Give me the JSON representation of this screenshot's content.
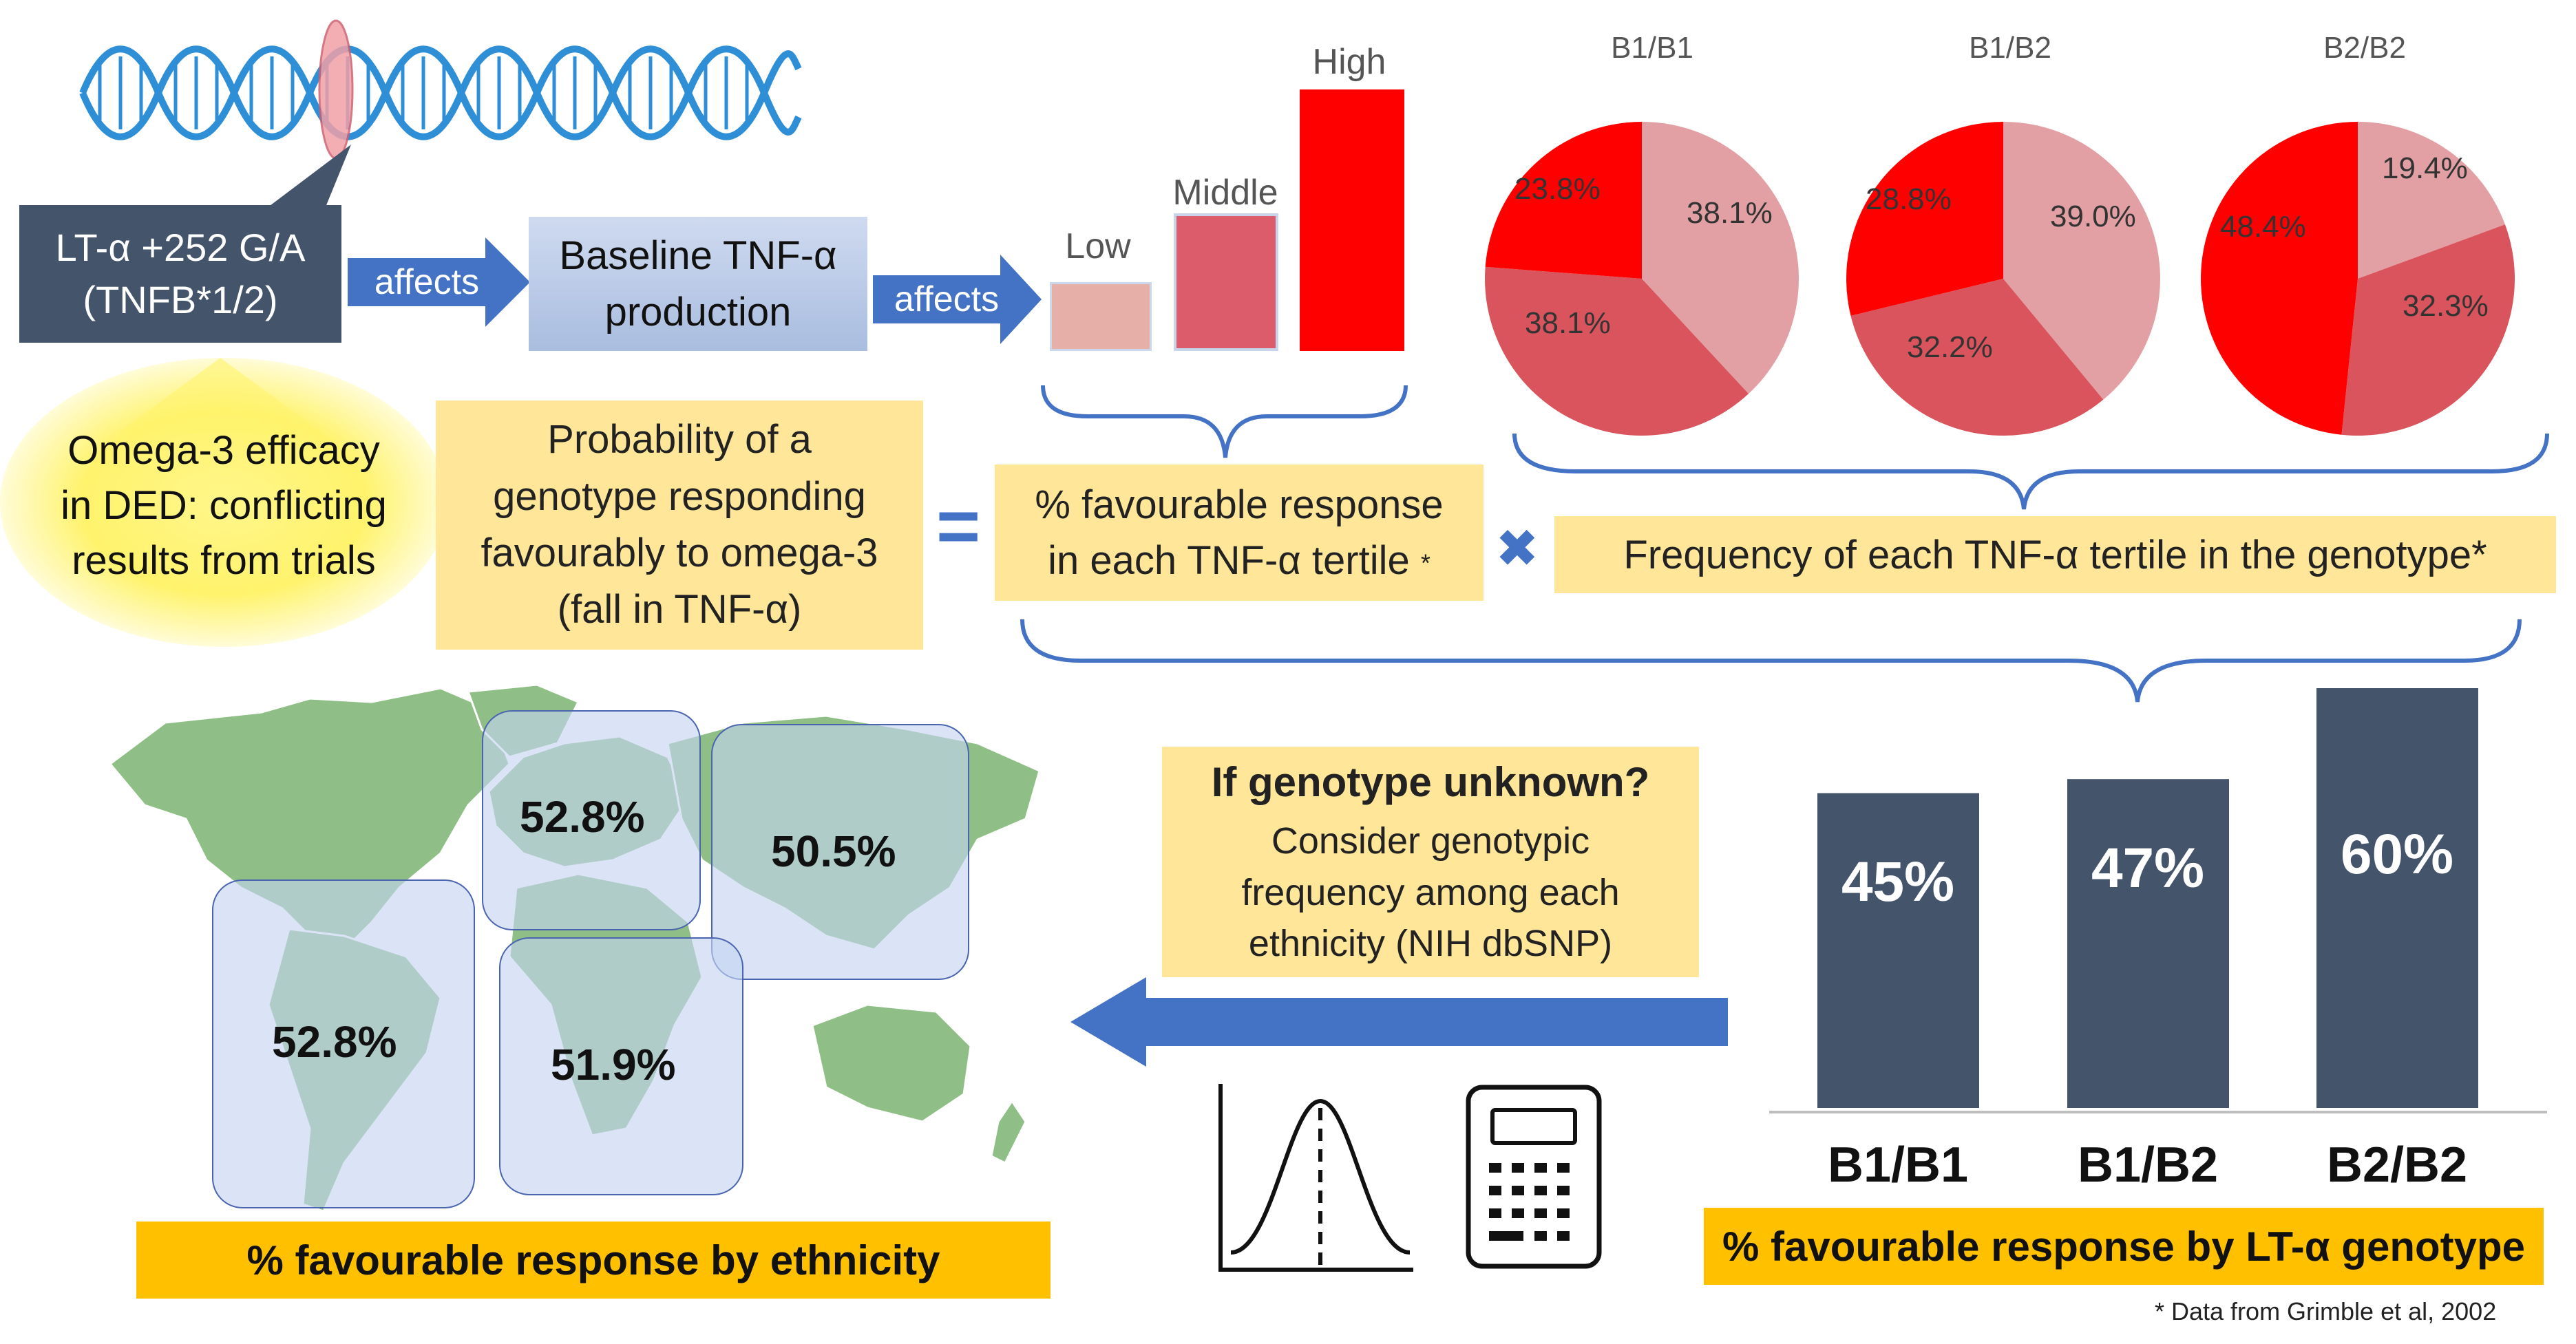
{
  "genotype_box": {
    "line1": "LT-α +252 G/A",
    "line2": "(TNFB*1/2)"
  },
  "arrows": {
    "affects1": "affects",
    "affects2": "affects"
  },
  "baseline_box": {
    "line1": "Baseline TNF-α",
    "line2": "production"
  },
  "tertile_levels": [
    {
      "label": "Low",
      "color": "#e6b0a8"
    },
    {
      "label": "Middle",
      "color": "#dc5c6c"
    },
    {
      "label": "High",
      "color": "#ff0000"
    }
  ],
  "pies": [
    {
      "title": "B1/B1",
      "slices": [
        {
          "label": "38.1%",
          "value": 38.1,
          "color": "#e2a0a4"
        },
        {
          "label": "38.1%",
          "value": 38.1,
          "color": "#d9545c"
        },
        {
          "label": "23.8%",
          "value": 23.8,
          "color": "#ff0000"
        }
      ]
    },
    {
      "title": "B1/B2",
      "slices": [
        {
          "label": "39.0%",
          "value": 39.0,
          "color": "#e2a0a4"
        },
        {
          "label": "32.2%",
          "value": 32.2,
          "color": "#d9545c"
        },
        {
          "label": "28.8%",
          "value": 28.8,
          "color": "#ff0000"
        }
      ]
    },
    {
      "title": "B2/B2",
      "slices": [
        {
          "label": "19.4%",
          "value": 19.4,
          "color": "#e2a0a4"
        },
        {
          "label": "32.3%",
          "value": 32.3,
          "color": "#d9545c"
        },
        {
          "label": "48.4%",
          "value": 48.4,
          "color": "#ff0000"
        }
      ]
    }
  ],
  "omega_note": {
    "line1": "Omega-3 efficacy",
    "line2": "in DED: conflicting",
    "line3": "results from trials"
  },
  "probability_box": {
    "line1": "Probability of a",
    "line2": "genotype responding",
    "line3": "favourably to omega-3",
    "line4": "(fall in TNF-α)"
  },
  "equals_symbol": "=",
  "favourable_box": {
    "line1": "% favourable response",
    "line2": "in each TNF-α tertile",
    "asterisk": "*"
  },
  "times_symbol": "✖",
  "frequency_box": {
    "text": "Frequency of each TNF-α tertile in the genotype*"
  },
  "regions": [
    {
      "name": "europe",
      "value": "52.8%"
    },
    {
      "name": "asia",
      "value": "50.5%"
    },
    {
      "name": "americas",
      "value": "52.8%"
    },
    {
      "name": "africa",
      "value": "51.9%"
    }
  ],
  "ethnicity_caption": "% favourable response by ethnicity",
  "unknown_box": {
    "title": "If genotype unknown?",
    "line1": "Consider genotypic",
    "line2": "frequency among each",
    "line3": "ethnicity (NIH dbSNP)"
  },
  "chart_data": {
    "type": "bar",
    "title": "% favourable response by LT-α genotype",
    "categories": [
      "B1/B1",
      "B1/B2",
      "B2/B2"
    ],
    "values": [
      45,
      47,
      60
    ],
    "value_labels": [
      "45%",
      "47%",
      "60%"
    ],
    "ylim": [
      0,
      60
    ],
    "color": "#44546a"
  },
  "genotype_caption": "% favourable response by LT-α genotype",
  "source_note": "* Data from Grimble et al, 2002",
  "icons": [
    "dna-helix-icon",
    "bell-curve-icon",
    "calculator-icon",
    "world-map"
  ]
}
